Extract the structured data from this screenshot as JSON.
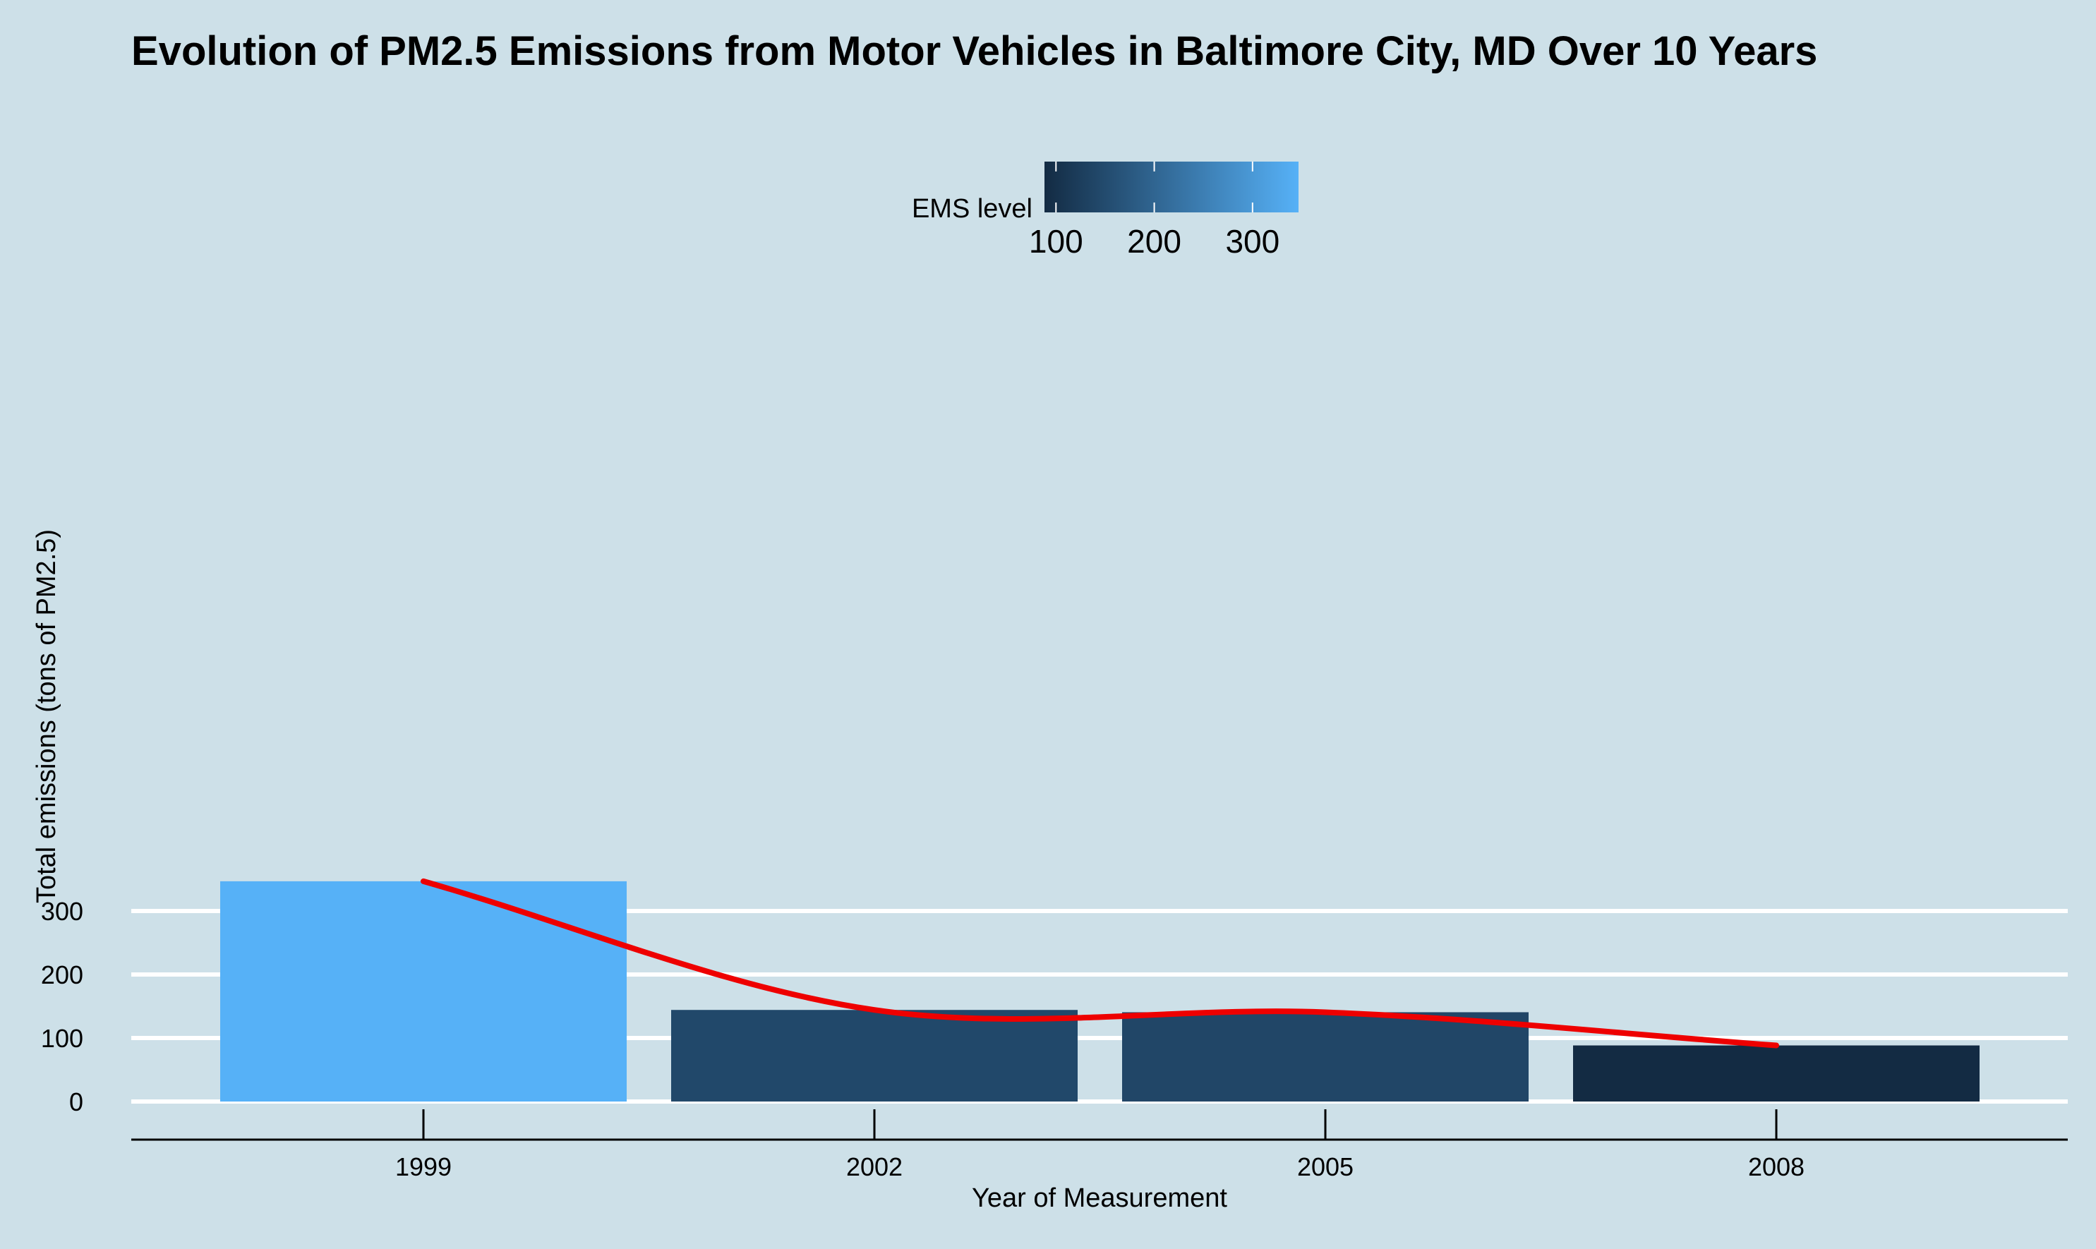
{
  "chart_data": {
    "type": "bar",
    "title": "Evolution of PM2.5 Emissions from Motor Vehicles in Baltimore City, MD Over 10 Years",
    "xlabel": "Year of Measurement",
    "ylabel": "Total emissions (tons of PM2.5)",
    "categories": [
      "1999",
      "2002",
      "2005",
      "2008"
    ],
    "values": [
      346.8,
      144.2,
      140.6,
      88.3
    ],
    "ylim": [
      0,
      360
    ],
    "yticks": [
      0,
      100,
      200,
      300
    ],
    "grid": "horizontal major",
    "trend_line": {
      "type": "smooth",
      "color": "#ee0000",
      "values": [
        346.8,
        144.2,
        140.6,
        88.3
      ]
    },
    "legend": {
      "title": "EMS level",
      "placement": "top",
      "type": "colorbar",
      "range": [
        88.3,
        346.8
      ],
      "ticks": [
        100,
        200,
        300
      ],
      "color_low": "#132b43",
      "color_high": "#56b1f7"
    },
    "colors": {
      "background": "#cde0e8",
      "bar_low": "#132b43",
      "bar_high": "#56b1f7",
      "gridline": "#ffffff"
    }
  }
}
